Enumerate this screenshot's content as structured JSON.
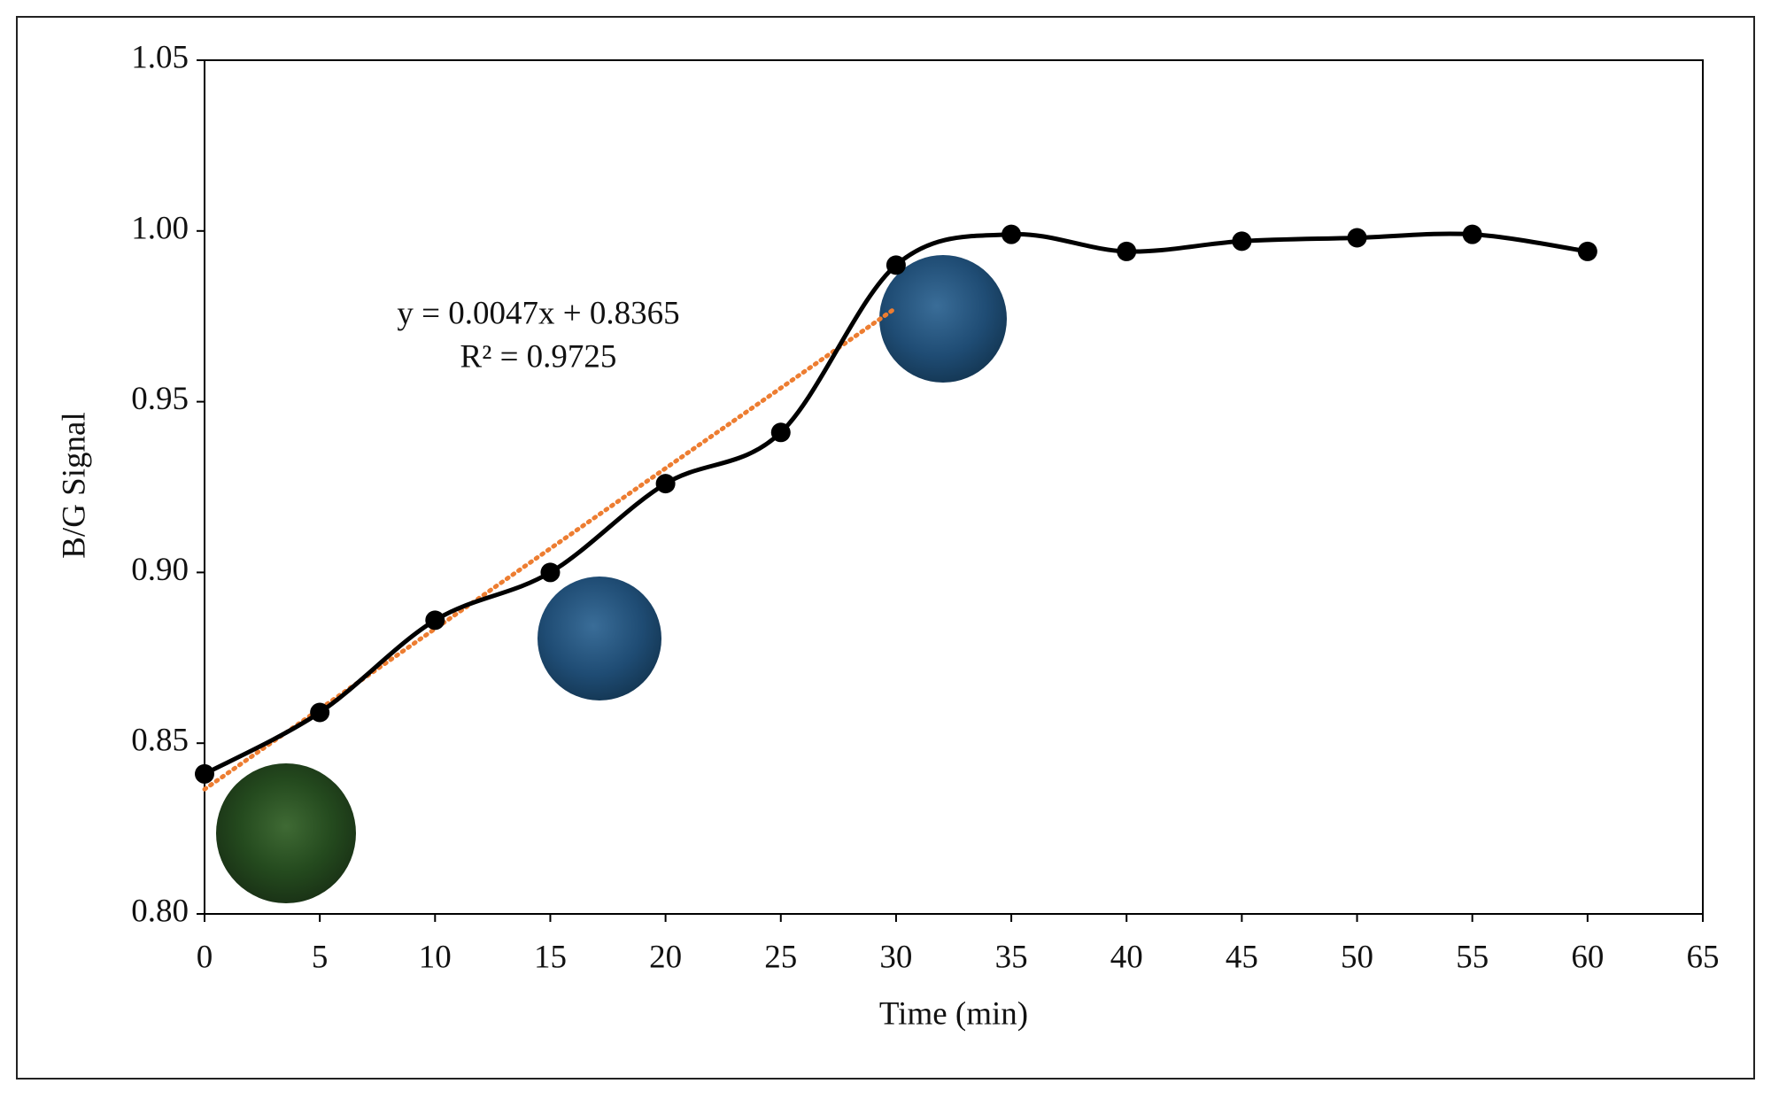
{
  "chart_data": {
    "type": "line",
    "x_label": "Time (min)",
    "y_label": "B/G Signal",
    "x": [
      0,
      5,
      10,
      15,
      20,
      25,
      30,
      35,
      40,
      45,
      50,
      55,
      60
    ],
    "series": [
      {
        "color": "#000000",
        "values": [
          0.841,
          0.859,
          0.886,
          0.9,
          0.926,
          0.941,
          0.99,
          0.999,
          0.994,
          0.997,
          0.998,
          0.999,
          0.994
        ]
      }
    ],
    "xlim": [
      0,
      65
    ],
    "xticks": [
      0,
      5,
      10,
      15,
      20,
      25,
      30,
      35,
      40,
      45,
      50,
      55,
      60,
      65
    ],
    "ylim": [
      0.8,
      1.05
    ],
    "yticks": [
      {
        "value": 0.8,
        "label": "0.80"
      },
      0.85,
      {
        "value": 0.9,
        "label": "0.90"
      },
      0.95,
      {
        "value": 1.0,
        "label": "1.00"
      },
      1.05
    ],
    "trendline": {
      "slope": 0.0047,
      "intercept": 0.8365,
      "x": [
        0,
        30
      ],
      "color": "#ed7d31"
    },
    "annotations": [
      "y = 0.0047x + 0.8365",
      "R² = 0.9725"
    ]
  }
}
